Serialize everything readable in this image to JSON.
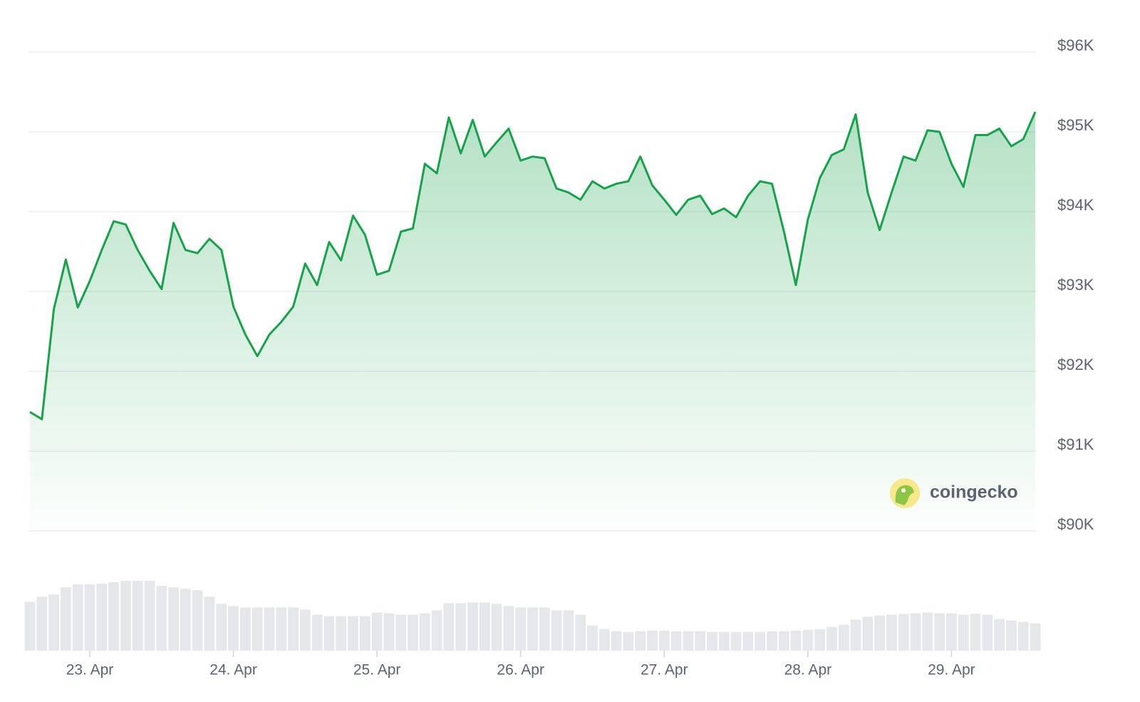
{
  "chart_data": {
    "type": "area",
    "categories": [
      null,
      null,
      null,
      null,
      null,
      "23. Apr",
      null,
      null,
      null,
      null,
      null,
      null,
      null,
      null,
      null,
      null,
      null,
      "24. Apr",
      null,
      null,
      null,
      null,
      null,
      null,
      null,
      null,
      null,
      null,
      null,
      "25. Apr",
      null,
      null,
      null,
      null,
      null,
      null,
      null,
      null,
      null,
      null,
      null,
      "26. Apr",
      null,
      null,
      null,
      null,
      null,
      null,
      null,
      null,
      null,
      null,
      null,
      "27. Apr",
      null,
      null,
      null,
      null,
      null,
      null,
      null,
      null,
      null,
      null,
      null,
      "28. Apr",
      null,
      null,
      null,
      null,
      null,
      null,
      null,
      null,
      null,
      null,
      null,
      "29. Apr",
      null,
      null,
      null,
      null,
      null,
      null,
      null
    ],
    "values": [
      91490,
      91400,
      92780,
      93400,
      92800,
      93130,
      93520,
      93880,
      93840,
      93520,
      93260,
      93030,
      93860,
      93520,
      93480,
      93660,
      93520,
      92810,
      92460,
      92190,
      92460,
      92620,
      92810,
      93350,
      93080,
      93620,
      93390,
      93950,
      93710,
      93210,
      93260,
      93750,
      93790,
      94600,
      94480,
      95180,
      94730,
      95150,
      94690,
      94870,
      95040,
      94640,
      94690,
      94670,
      94290,
      94240,
      94150,
      94380,
      94290,
      94350,
      94380,
      94690,
      94330,
      94150,
      93960,
      94150,
      94200,
      93970,
      94040,
      93930,
      94200,
      94380,
      94350,
      93750,
      93080,
      93900,
      94420,
      94710,
      94780,
      95220,
      94240,
      93770,
      94240,
      94690,
      94640,
      95020,
      95000,
      94600,
      94310,
      94960,
      94960,
      95040,
      94820,
      94910,
      95250
    ],
    "color": "#16a34a",
    "volume": {
      "color": "#e5e7eb",
      "values": [
        68,
        75,
        78,
        88,
        92,
        92,
        93,
        95,
        97,
        97,
        97,
        90,
        88,
        86,
        84,
        75,
        65,
        62,
        60,
        60,
        60,
        60,
        60,
        57,
        50,
        48,
        48,
        48,
        48,
        53,
        52,
        50,
        50,
        52,
        56,
        66,
        66,
        67,
        67,
        65,
        62,
        60,
        60,
        60,
        56,
        56,
        50,
        35,
        30,
        27,
        26,
        27,
        28,
        28,
        27,
        27,
        27,
        26,
        26,
        26,
        26,
        26,
        27,
        27,
        28,
        29,
        30,
        33,
        36,
        43,
        47,
        49,
        50,
        51,
        52,
        53,
        52,
        52,
        50,
        51,
        50,
        44,
        42,
        40,
        38
      ]
    },
    "ylim": [
      90000,
      96000
    ],
    "yticks": [
      {
        "value": 90000,
        "label": "$90K"
      },
      {
        "value": 91000,
        "label": "$91K"
      },
      {
        "value": 92000,
        "label": "$92K"
      },
      {
        "value": 93000,
        "label": "$93K"
      },
      {
        "value": 94000,
        "label": "$94K"
      },
      {
        "value": 95000,
        "label": "$95K"
      },
      {
        "value": 96000,
        "label": "$96K"
      }
    ],
    "grid": true,
    "watermark": "coingecko"
  }
}
